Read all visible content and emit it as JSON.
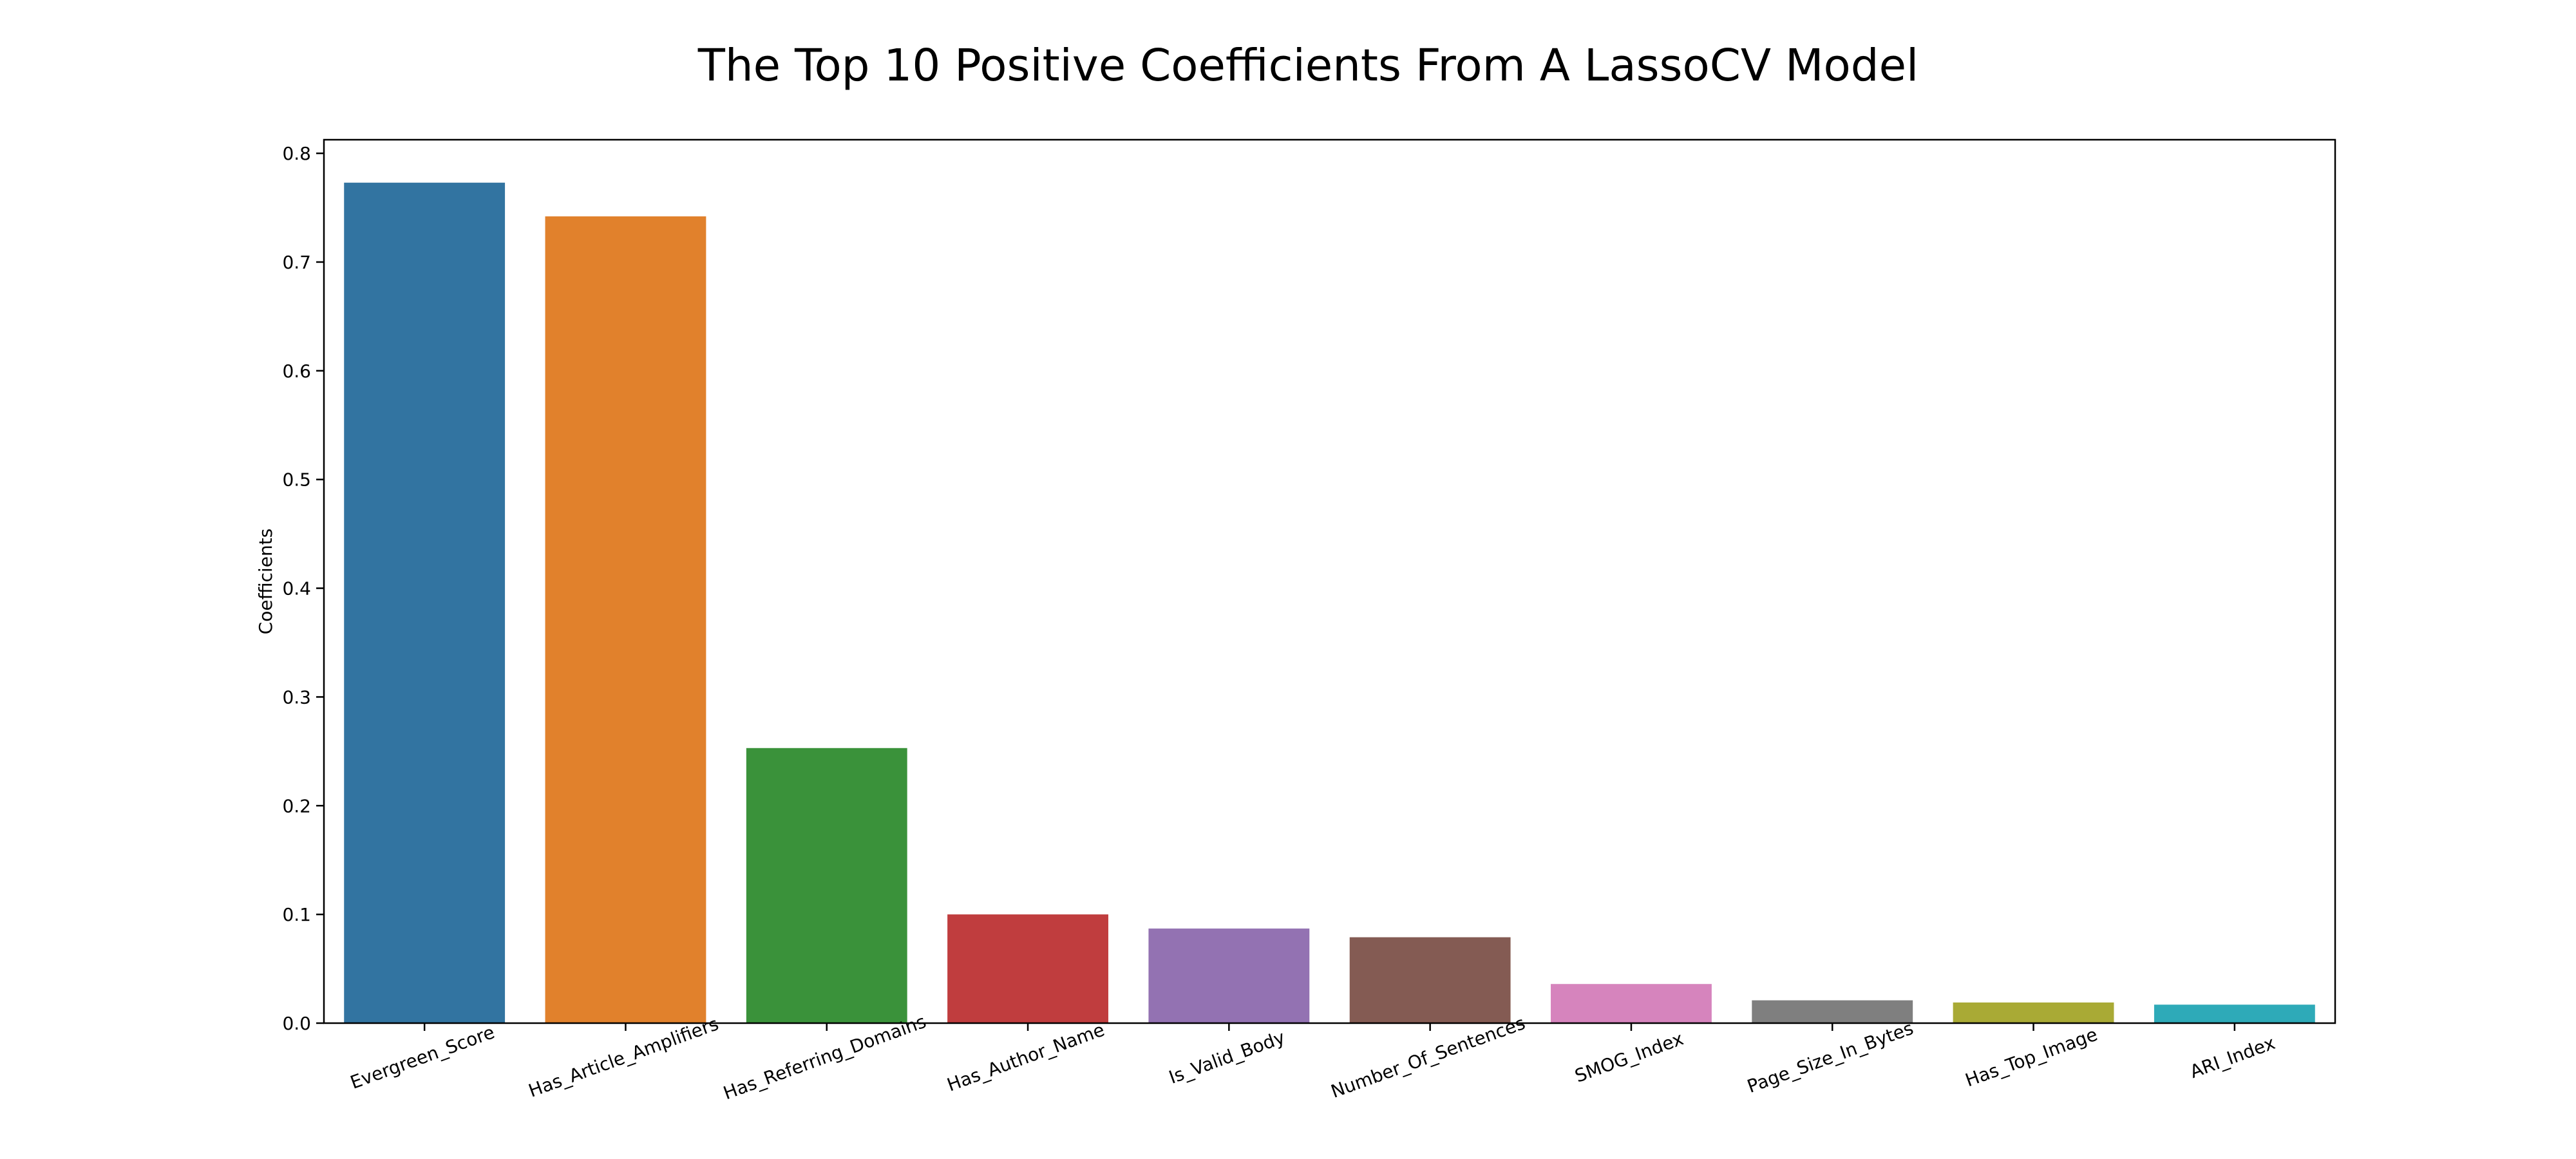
{
  "chart_data": {
    "type": "bar",
    "title": "The Top 10 Positive Coefficients From A LassoCV Model",
    "xlabel": "",
    "ylabel": "Coefficients",
    "categories": [
      "Evergreen_Score",
      "Has_Article_Amplifiers",
      "Has_Referring_Domains",
      "Has_Author_Name",
      "Is_Valid_Body",
      "Number_Of_Sentences",
      "SMOG_Index",
      "Page_Size_In_Bytes",
      "Has_Top_Image",
      "ARI_Index"
    ],
    "values": [
      0.773,
      0.742,
      0.253,
      0.1,
      0.087,
      0.079,
      0.036,
      0.021,
      0.019,
      0.017
    ],
    "colors": [
      "#3274a1",
      "#e1812c",
      "#3a923a",
      "#c03d3e",
      "#9372b2",
      "#845b53",
      "#d684bd",
      "#7f7f7f",
      "#a9aa35",
      "#2eaab8"
    ],
    "ylim": [
      0,
      0.8125
    ],
    "yticks": [
      0.0,
      0.1,
      0.2,
      0.3,
      0.4,
      0.5,
      0.6,
      0.7,
      0.8
    ],
    "ytick_labels": [
      "0.0",
      "0.1",
      "0.2",
      "0.3",
      "0.4",
      "0.5",
      "0.6",
      "0.7",
      "0.8"
    ],
    "grid": false,
    "legend": "none"
  }
}
